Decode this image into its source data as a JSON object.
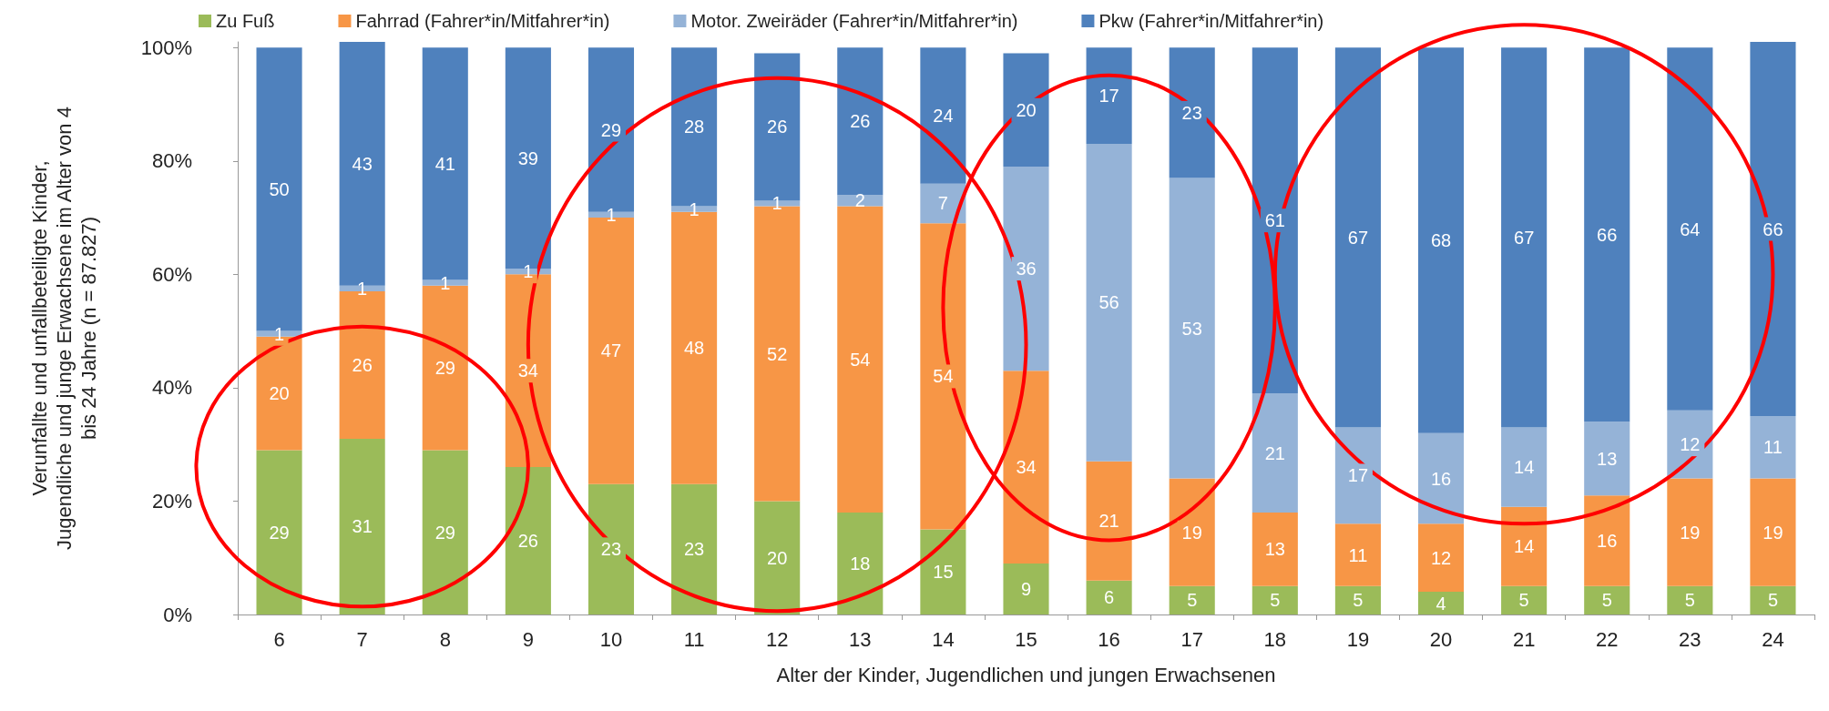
{
  "chart_data": {
    "type": "bar",
    "stacked": true,
    "xlabel": "Alter der Kinder, Jugendlichen und jungen Erwachsenen",
    "ylabel": "Verunfallte und unfallbeteiligte Kinder, Jugendliche und junge Erwachsene im Alter von 4 bis 24 Jahre (n = 87.827)",
    "categories": [
      "6",
      "7",
      "8",
      "9",
      "10",
      "11",
      "12",
      "13",
      "14",
      "15",
      "16",
      "17",
      "18",
      "19",
      "20",
      "21",
      "22",
      "23",
      "24"
    ],
    "series": [
      {
        "name": "Zu Fuß",
        "color": "#9bbb59",
        "values": [
          29,
          31,
          29,
          26,
          23,
          23,
          20,
          18,
          15,
          9,
          6,
          5,
          5,
          5,
          4,
          5,
          5,
          5,
          5
        ]
      },
      {
        "name": "Fahrrad (Fahrer*in/Mitfahrer*in)",
        "color": "#f79646",
        "values": [
          20,
          26,
          29,
          34,
          47,
          48,
          52,
          54,
          54,
          34,
          21,
          19,
          13,
          11,
          12,
          14,
          16,
          19,
          19
        ]
      },
      {
        "name": "Motor. Zweiräder (Fahrer*in/Mitfahrer*in)",
        "color": "#95b3d7",
        "values": [
          1,
          1,
          1,
          1,
          1,
          1,
          1,
          2,
          7,
          36,
          56,
          53,
          21,
          17,
          16,
          14,
          13,
          12,
          11
        ]
      },
      {
        "name": "Pkw (Fahrer*in/Mitfahrer*in)",
        "color": "#4f81bd",
        "values": [
          50,
          43,
          41,
          39,
          29,
          28,
          26,
          26,
          24,
          20,
          17,
          23,
          61,
          67,
          68,
          67,
          66,
          64,
          66
        ]
      }
    ],
    "ylim": [
      0,
      101
    ],
    "yticks": [
      {
        "value": 0,
        "label": "0%"
      },
      {
        "value": 20,
        "label": "20%"
      },
      {
        "value": 40,
        "label": "40%"
      },
      {
        "value": 60,
        "label": "60%"
      },
      {
        "value": 80,
        "label": "80%"
      },
      {
        "value": 100,
        "label": "100%"
      }
    ],
    "grid": false,
    "legend": "top",
    "data_labels": true
  }
}
